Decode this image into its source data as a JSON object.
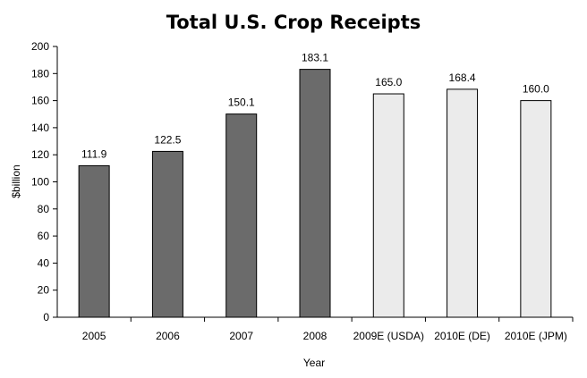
{
  "chart_data": {
    "type": "bar",
    "title": "Total U.S. Crop Receipts",
    "xlabel": "Year",
    "ylabel": "$billion",
    "ylim": [
      0,
      200
    ],
    "yticks": [
      0,
      20,
      40,
      60,
      80,
      100,
      120,
      140,
      160,
      180,
      200
    ],
    "categories": [
      "2005",
      "2006",
      "2007",
      "2008",
      "2009E (USDA)",
      "2010E (DE)",
      "2010E (JPM)"
    ],
    "values": [
      111.9,
      122.5,
      150.1,
      183.1,
      165.0,
      168.4,
      160.0
    ],
    "data_labels": [
      "111.9",
      "122.5",
      "150.1",
      "183.1",
      "165.0",
      "168.4",
      "160.0"
    ],
    "bar_styles": [
      "actual",
      "actual",
      "actual",
      "actual",
      "estimate",
      "estimate",
      "estimate"
    ],
    "colors": {
      "actual": "#6b6b6b",
      "estimate": "#ebebeb",
      "outline": "#000000"
    },
    "grid": false,
    "legend": "none"
  }
}
